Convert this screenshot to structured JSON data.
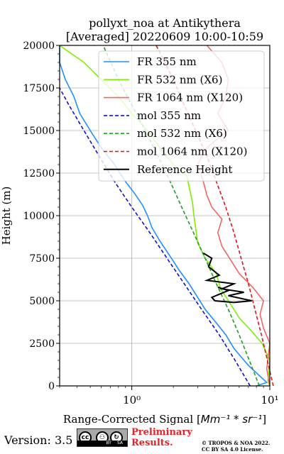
{
  "chart_data": {
    "type": "line",
    "title": "pollyxt_noa at Antikythera",
    "subtitle": "[Averaged] 20220609 10:00-10:59",
    "ylabel": "Height (m)",
    "xlabel_prefix": "Range-Corrected Signal [",
    "xlabel_math": "Mm⁻¹ * sr⁻¹",
    "xlabel_suffix": "]",
    "xscale": "log",
    "xlim": [
      0.3,
      10
    ],
    "ylim": [
      0,
      20000
    ],
    "yticks": [
      0,
      2500,
      5000,
      7500,
      10000,
      12500,
      15000,
      17500,
      20000
    ],
    "ytick_labels": [
      "0",
      "2500",
      "5000",
      "7500",
      "10000",
      "12500",
      "15000",
      "17500",
      "20000"
    ],
    "xticks": [
      1,
      10
    ],
    "xtick_labels": [
      "10⁰",
      "10¹"
    ],
    "grid": true,
    "legend_position": "upper-right",
    "series": [
      {
        "name": "FR 355 nm",
        "color": "#1f8fff",
        "style": "solid",
        "points": [
          [
            8.0,
            0
          ],
          [
            9.5,
            200
          ],
          [
            7.0,
            1200
          ],
          [
            5.5,
            2200
          ],
          [
            4.8,
            3000
          ],
          [
            4.0,
            3800
          ],
          [
            3.4,
            4500
          ],
          [
            3.0,
            5200
          ],
          [
            2.6,
            6000
          ],
          [
            2.2,
            6800
          ],
          [
            1.9,
            7600
          ],
          [
            1.6,
            8500
          ],
          [
            1.4,
            9300
          ],
          [
            1.3,
            10000
          ],
          [
            1.2,
            10600
          ],
          [
            1.05,
            11300
          ],
          [
            0.9,
            12000
          ],
          [
            0.75,
            13000
          ],
          [
            0.6,
            14000
          ],
          [
            0.5,
            15000
          ],
          [
            0.42,
            16000
          ],
          [
            0.38,
            17000
          ],
          [
            0.33,
            18000
          ],
          [
            0.3,
            19000
          ],
          [
            0.3,
            20000
          ]
        ]
      },
      {
        "name": "FR 532 nm (X6)",
        "color": "#7cf000",
        "style": "solid",
        "points": [
          [
            10.0,
            0
          ],
          [
            9.7,
            300
          ],
          [
            10.0,
            1500
          ],
          [
            8.8,
            2500
          ],
          [
            7.4,
            3200
          ],
          [
            6.0,
            4000
          ],
          [
            5.2,
            4800
          ],
          [
            4.4,
            5700
          ],
          [
            4.1,
            6600
          ],
          [
            3.4,
            7500
          ],
          [
            3.0,
            8400
          ],
          [
            2.9,
            9300
          ],
          [
            2.8,
            10200
          ],
          [
            2.75,
            10800
          ],
          [
            2.6,
            11700
          ],
          [
            2.5,
            12400
          ],
          [
            2.0,
            13000
          ],
          [
            1.6,
            14000
          ],
          [
            1.3,
            15000
          ],
          [
            1.0,
            16000
          ],
          [
            0.8,
            17000
          ],
          [
            0.6,
            18000
          ],
          [
            0.45,
            19000
          ],
          [
            0.3,
            20000
          ]
        ]
      },
      {
        "name": "FR 1064 nm (X120)",
        "color": "#f46464",
        "style": "solid",
        "points": [
          [
            10.0,
            0
          ],
          [
            9.5,
            1000
          ],
          [
            10.0,
            2500
          ],
          [
            9.0,
            3400
          ],
          [
            8.5,
            4200
          ],
          [
            9.0,
            5000
          ],
          [
            7.5,
            5800
          ],
          [
            6.0,
            6600
          ],
          [
            5.2,
            7400
          ],
          [
            4.5,
            8200
          ],
          [
            4.2,
            9000
          ],
          [
            4.5,
            9800
          ],
          [
            3.8,
            10500
          ],
          [
            3.5,
            11200
          ],
          [
            3.3,
            12000
          ],
          [
            3.0,
            13000
          ],
          [
            3.5,
            14000
          ],
          [
            5.0,
            15000
          ],
          [
            4.2,
            16000
          ],
          [
            4.8,
            17000
          ],
          [
            5.0,
            18000
          ],
          [
            4.5,
            19000
          ],
          [
            3.5,
            20000
          ]
        ]
      },
      {
        "name": "mol 355 nm",
        "color": "#1010d0",
        "style": "dashed",
        "points": [
          [
            7.2,
            0
          ],
          [
            5.6,
            1500
          ],
          [
            4.3,
            3000
          ],
          [
            3.2,
            4500
          ],
          [
            2.4,
            6000
          ],
          [
            1.8,
            7500
          ],
          [
            1.35,
            9000
          ],
          [
            1.0,
            10500
          ],
          [
            0.75,
            12000
          ],
          [
            0.58,
            13500
          ],
          [
            0.45,
            15000
          ],
          [
            0.35,
            16500
          ],
          [
            0.3,
            17500
          ]
        ]
      },
      {
        "name": "mol 532 nm (X6)",
        "color": "#1f9f1f",
        "style": "dashed",
        "points": [
          [
            8.4,
            0
          ],
          [
            7.1,
            1500
          ],
          [
            6.0,
            3000
          ],
          [
            5.0,
            4500
          ],
          [
            4.1,
            6000
          ],
          [
            3.4,
            7500
          ],
          [
            2.8,
            9000
          ],
          [
            2.3,
            10500
          ],
          [
            1.9,
            12000
          ],
          [
            1.55,
            13500
          ],
          [
            1.25,
            15000
          ],
          [
            1.0,
            16500
          ],
          [
            0.8,
            18000
          ],
          [
            0.62,
            20000
          ]
        ]
      },
      {
        "name": "mol 1064 nm (X120)",
        "color": "#e0141e",
        "style": "dashed",
        "points": [
          [
            10.6,
            0
          ],
          [
            9.6,
            1500
          ],
          [
            8.7,
            3000
          ],
          [
            7.8,
            4500
          ],
          [
            7.0,
            6000
          ],
          [
            6.2,
            7500
          ],
          [
            5.5,
            9000
          ],
          [
            4.8,
            10500
          ],
          [
            4.1,
            12000
          ],
          [
            3.5,
            13500
          ],
          [
            2.9,
            15000
          ],
          [
            2.4,
            16500
          ],
          [
            2.0,
            18000
          ],
          [
            1.5,
            20000
          ]
        ]
      },
      {
        "name": "Reference Height",
        "color": "#000000",
        "style": "solid",
        "points": [
          [
            3.3,
            7800
          ],
          [
            3.8,
            7500
          ],
          [
            3.6,
            7000
          ],
          [
            4.3,
            6500
          ],
          [
            3.5,
            6200
          ],
          [
            5.5,
            6000
          ],
          [
            4.5,
            5700
          ],
          [
            6.5,
            5500
          ],
          [
            5.0,
            5300
          ],
          [
            7.4,
            5000
          ],
          [
            5.5,
            4900
          ],
          [
            4.0,
            5000
          ],
          [
            3.8,
            5200
          ],
          [
            5.0,
            5600
          ],
          [
            4.2,
            5800
          ]
        ]
      }
    ]
  },
  "footer": {
    "version": "Version: 3.5",
    "cc": "cc",
    "cc_by": "BY",
    "cc_sa": "SA",
    "preliminary_line1": "Preliminary",
    "preliminary_line2": "Results.",
    "copyright_line1": "© TROPOS & NOA 2022.",
    "copyright_line2": "CC BY SA 4.0 License."
  }
}
